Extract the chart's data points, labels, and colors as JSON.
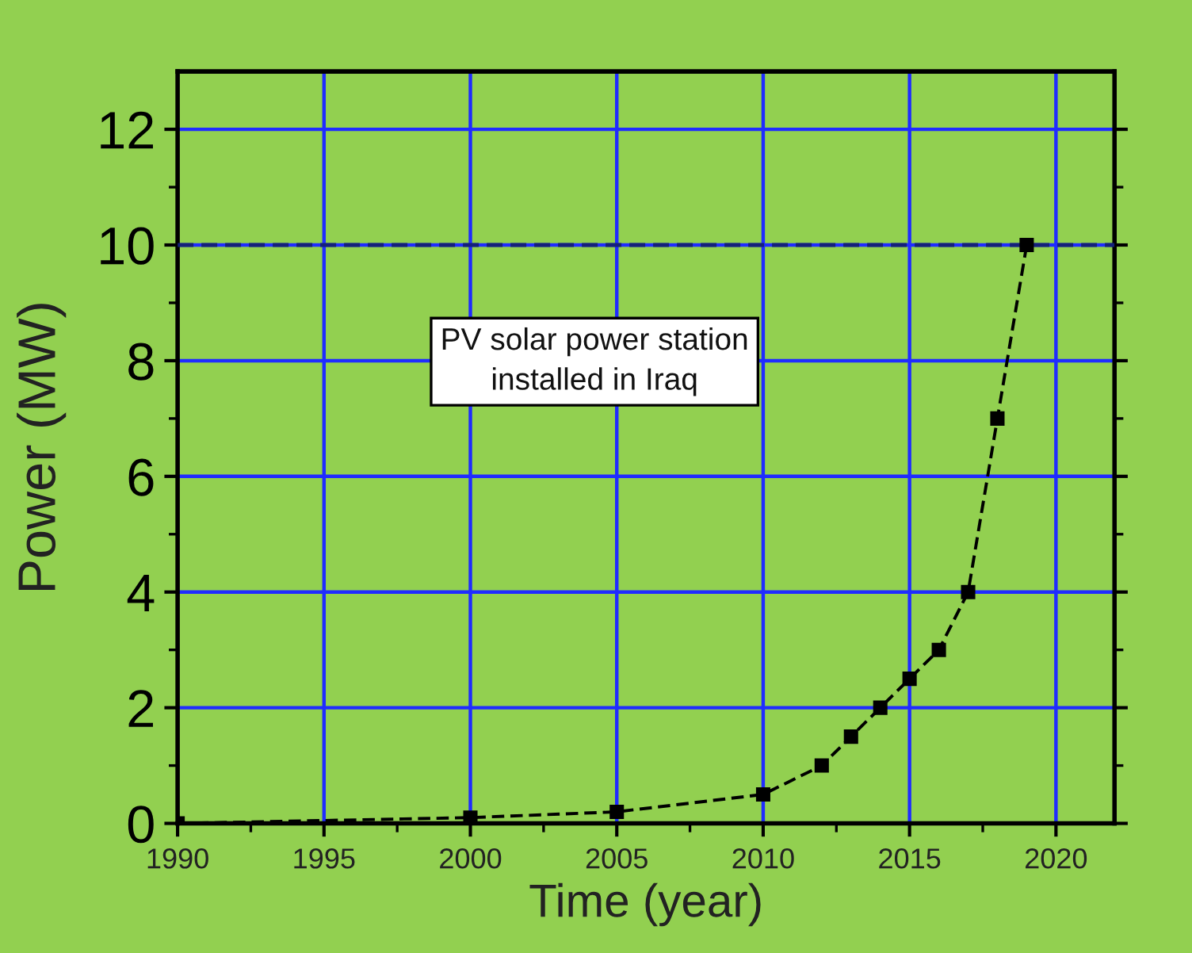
{
  "chart_data": {
    "type": "line",
    "xlabel": "Time (year)",
    "ylabel": "Power (MW)",
    "x": [
      1990,
      2000,
      2005,
      2010,
      2012,
      2013,
      2014,
      2015,
      2016,
      2017,
      2018,
      2019
    ],
    "series": [
      {
        "color": "#000000",
        "values": [
          0,
          0.1,
          0.2,
          0.5,
          1.0,
          1.5,
          2.0,
          2.5,
          3.0,
          4.0,
          7.0,
          10.0
        ]
      }
    ],
    "xlim": [
      1990,
      2022
    ],
    "ylim": [
      0,
      13
    ],
    "xticks": [
      1990,
      1995,
      2000,
      2005,
      2010,
      2015,
      2020
    ],
    "yticks": [
      0,
      2,
      4,
      6,
      8,
      10,
      12
    ],
    "grid": true,
    "marker": "square",
    "line_style": "dashed",
    "ref_lines": [
      {
        "axis": "y",
        "value": 10,
        "color": "#14207a",
        "line_style": "dashed"
      }
    ],
    "annotations": [
      "PV solar power station\ninstalled in Iraq"
    ]
  }
}
